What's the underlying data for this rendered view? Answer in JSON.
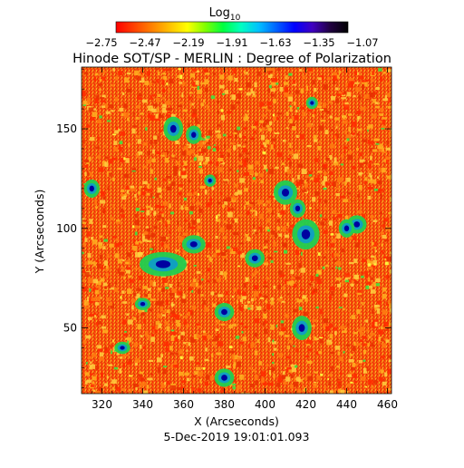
{
  "chart_data": {
    "type": "heatmap",
    "title": "Hinode SOT/SP - MERLIN : Degree of Polarization",
    "xlabel": "X (Arcseconds)",
    "ylabel": "Y (Arcseconds)",
    "footer": "5-Dec-2019 19:01:01.093",
    "xlim": [
      310,
      462
    ],
    "ylim": [
      17,
      181
    ],
    "x_ticks": [
      "320",
      "340",
      "360",
      "380",
      "400",
      "420",
      "440",
      "460"
    ],
    "x_tick_values": [
      320,
      340,
      360,
      380,
      400,
      420,
      440,
      460
    ],
    "y_ticks": [
      "50",
      "100",
      "150"
    ],
    "y_tick_values": [
      50,
      100,
      150
    ],
    "colorbar": {
      "label_base": "Log",
      "label_sub": "10",
      "min": -2.75,
      "max": -1.07,
      "ticks": [
        "−2.75",
        "−2.47",
        "−2.19",
        "−1.91",
        "−1.63",
        "−1.35",
        "−1.07"
      ],
      "colors": [
        "#ff0000",
        "#ff4000",
        "#ff8000",
        "#ffc000",
        "#ffff00",
        "#80ff00",
        "#00ff40",
        "#00ffc0",
        "#00c0ff",
        "#0060ff",
        "#0000ff",
        "#4000c0",
        "#200040",
        "#000000"
      ]
    },
    "map_colors": {
      "background": "#f25a12",
      "speckle": [
        "#ff2a00",
        "#ff7a10",
        "#ffb020",
        "#ffd040",
        "#e83000"
      ],
      "concentrations": [
        "#20d050",
        "#10a0c0",
        "#0000a0"
      ]
    }
  }
}
